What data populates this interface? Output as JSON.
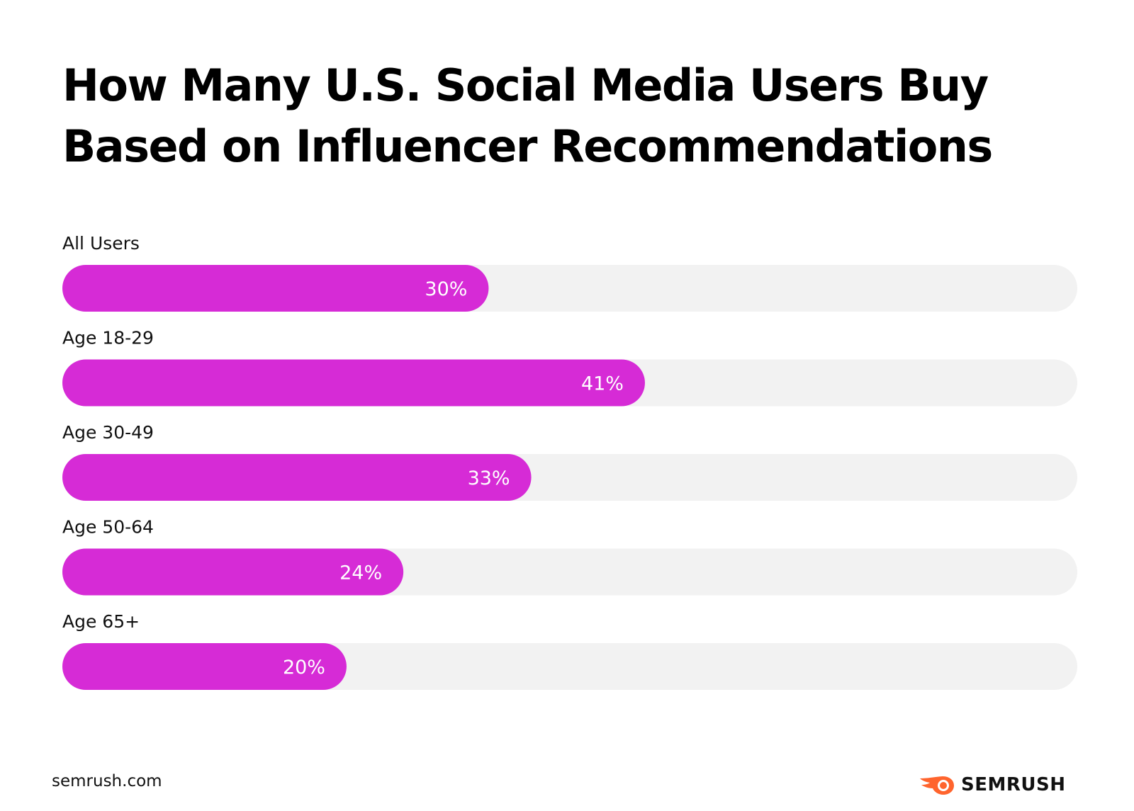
{
  "chart_data": {
    "type": "bar",
    "orientation": "horizontal",
    "title": "How Many U.S. Social Media Users Buy Based on Influencer Recommendations",
    "categories": [
      "All Users",
      "Age 18-29",
      "Age 30-49",
      "Age 50-64",
      "Age 65+"
    ],
    "values": [
      30,
      41,
      33,
      24,
      20
    ],
    "value_labels": [
      "30%",
      "41%",
      "33%",
      "24%",
      "20%"
    ],
    "xlim": [
      0,
      100
    ],
    "unit": "%",
    "grid": false,
    "legend": "none"
  },
  "colors": {
    "bar": "#d62bd6",
    "track": "#f2f2f2",
    "logo": "#ff642d"
  },
  "footer": {
    "source": "semrush.com",
    "brand": "SEMRUSH"
  }
}
